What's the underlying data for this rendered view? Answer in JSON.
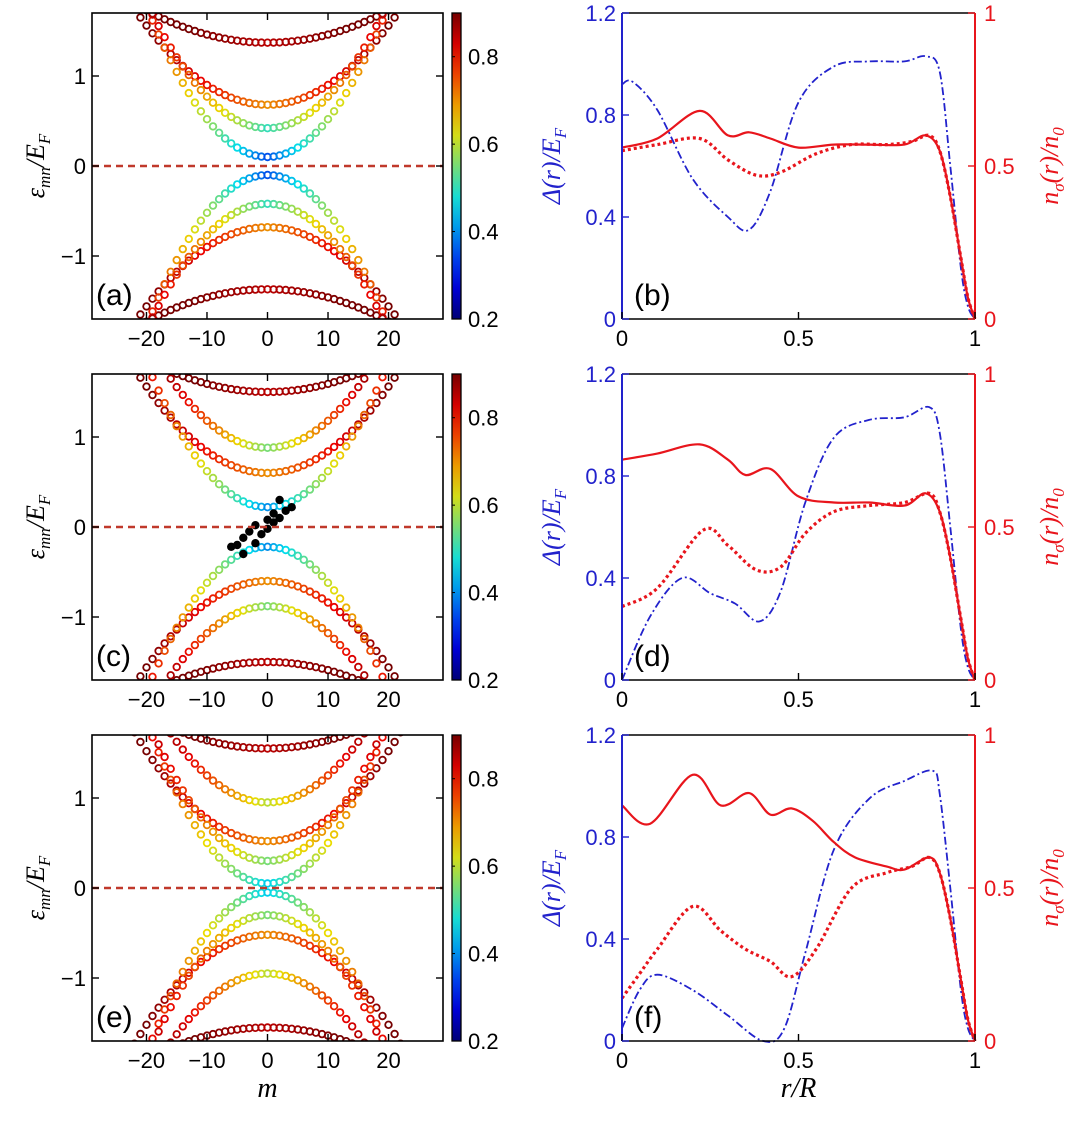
{
  "figure": {
    "colorbar_ticks": [
      "0.8",
      "0.6",
      "0.4",
      "0.2"
    ],
    "colorbar_range": [
      0.2,
      0.9
    ],
    "colors": {
      "delta": "#2222cc",
      "density": "#e8151c",
      "fermi_line": "#c0392b",
      "dot": "#000000"
    }
  },
  "chart_data": [
    {
      "type": "scatter",
      "panel": "(a)",
      "xlabel": "",
      "ylabel": "ε_mn/E_F",
      "xlim": [
        -29,
        29
      ],
      "ylim": [
        -1.7,
        1.7
      ],
      "xticks": [
        "−20",
        "−10",
        "0",
        "10",
        "20"
      ],
      "yticks": [
        "1",
        "0",
        "−1"
      ],
      "reference_line": {
        "y": 0,
        "style": "dashed"
      },
      "bands": [
        {
          "a": 1.37,
          "c": 0.0009,
          "min_w": 0.85,
          "span": 13
        },
        {
          "a": 0.68,
          "c": 0.0022,
          "min_w": 0.7,
          "span": 20
        },
        {
          "a": 0.1,
          "c": 0.0042,
          "min_w": 0.35,
          "span": 24
        },
        {
          "a": 0.42,
          "c": 0.0035,
          "min_w": 0.5,
          "span": 22
        }
      ],
      "special_points": []
    },
    {
      "type": "line",
      "panel": "(b)",
      "xlabel": "",
      "ylabel_left": "Δ(r)/E_F",
      "ylabel_right": "n_σ(r)/n_0",
      "xlim": [
        0,
        1
      ],
      "ylim_left": [
        0,
        1.2
      ],
      "ylim_right": [
        0,
        1
      ],
      "xticks": [
        "0",
        "0.5",
        "1"
      ],
      "yticks_left": [
        "1.2",
        "0.8",
        "0.4",
        "0"
      ],
      "yticks_right": [
        "1",
        "0.5",
        "0"
      ],
      "series": [
        {
          "kind": "delta",
          "x": [
            0,
            0.03,
            0.1,
            0.2,
            0.3,
            0.36,
            0.42,
            0.5,
            0.6,
            0.7,
            0.8,
            0.86,
            0.9,
            0.93,
            0.96,
            0.98,
            1.0
          ],
          "y": [
            0.92,
            0.93,
            0.82,
            0.55,
            0.4,
            0.35,
            0.5,
            0.85,
            0.99,
            1.01,
            1.01,
            1.03,
            0.97,
            0.6,
            0.2,
            0.05,
            0
          ]
        },
        {
          "kind": "n_up",
          "x": [
            0,
            0.1,
            0.22,
            0.3,
            0.36,
            0.42,
            0.5,
            0.6,
            0.7,
            0.8,
            0.86,
            0.9,
            0.93,
            0.96,
            0.98,
            1.0
          ],
          "y": [
            0.56,
            0.59,
            0.68,
            0.6,
            0.61,
            0.59,
            0.56,
            0.57,
            0.57,
            0.57,
            0.6,
            0.55,
            0.4,
            0.2,
            0.07,
            0
          ]
        },
        {
          "kind": "n_down",
          "x": [
            0,
            0.1,
            0.22,
            0.3,
            0.38,
            0.45,
            0.55,
            0.65,
            0.75,
            0.82,
            0.87,
            0.9,
            0.93,
            0.96,
            0.98,
            1.0
          ],
          "y": [
            0.55,
            0.57,
            0.59,
            0.52,
            0.47,
            0.48,
            0.54,
            0.57,
            0.57,
            0.58,
            0.6,
            0.55,
            0.4,
            0.2,
            0.07,
            0
          ]
        }
      ]
    },
    {
      "type": "scatter",
      "panel": "(c)",
      "xlabel": "",
      "ylabel": "ε_mn/E_F",
      "xlim": [
        -29,
        29
      ],
      "ylim": [
        -1.7,
        1.7
      ],
      "xticks": [
        "−20",
        "−10",
        "0",
        "10",
        "20"
      ],
      "yticks": [
        "1",
        "0",
        "−1"
      ],
      "reference_line": {
        "y": 0,
        "style": "dashed"
      },
      "bands": [
        {
          "a": 1.5,
          "c": 0.0009,
          "min_w": 0.85,
          "span": 12
        },
        {
          "a": 0.6,
          "c": 0.0024,
          "min_w": 0.7,
          "span": 20
        },
        {
          "a": 0.22,
          "c": 0.004,
          "min_w": 0.4,
          "span": 24
        },
        {
          "a": 0.88,
          "c": 0.003,
          "min_w": 0.55,
          "span": 18
        }
      ],
      "special_points": [
        {
          "m": -6,
          "e": -0.22
        },
        {
          "m": -5,
          "e": -0.2
        },
        {
          "m": -4,
          "e": -0.3
        },
        {
          "m": -4,
          "e": -0.12
        },
        {
          "m": -3,
          "e": -0.05
        },
        {
          "m": -2,
          "e": -0.18
        },
        {
          "m": -2,
          "e": 0.02
        },
        {
          "m": -1,
          "e": -0.08
        },
        {
          "m": 0,
          "e": 0.08
        },
        {
          "m": 0,
          "e": -0.02
        },
        {
          "m": 1,
          "e": 0.15
        },
        {
          "m": 1,
          "e": 0.05
        },
        {
          "m": 2,
          "e": 0.3
        },
        {
          "m": 2,
          "e": 0.1
        },
        {
          "m": 3,
          "e": 0.18
        },
        {
          "m": 4,
          "e": 0.22
        }
      ]
    },
    {
      "type": "line",
      "panel": "(d)",
      "xlabel": "",
      "ylabel_left": "Δ(r)/E_F",
      "ylabel_right": "n_σ(r)/n_0",
      "xlim": [
        0,
        1
      ],
      "ylim_left": [
        0,
        1.2
      ],
      "ylim_right": [
        0,
        1
      ],
      "xticks": [
        "0",
        "0.5",
        "1"
      ],
      "yticks_left": [
        "1.2",
        "0.8",
        "0.4",
        "0"
      ],
      "yticks_right": [
        "1",
        "0.5",
        "0"
      ],
      "series": [
        {
          "kind": "delta",
          "x": [
            0,
            0.08,
            0.17,
            0.25,
            0.32,
            0.39,
            0.45,
            0.52,
            0.6,
            0.7,
            0.8,
            0.87,
            0.9,
            0.93,
            0.96,
            0.98,
            1.0
          ],
          "y": [
            0,
            0.25,
            0.4,
            0.34,
            0.3,
            0.23,
            0.35,
            0.7,
            0.95,
            1.02,
            1.03,
            1.07,
            0.97,
            0.6,
            0.2,
            0.05,
            0
          ]
        },
        {
          "kind": "n_up",
          "x": [
            0,
            0.1,
            0.22,
            0.3,
            0.35,
            0.42,
            0.5,
            0.6,
            0.7,
            0.8,
            0.86,
            0.9,
            0.93,
            0.96,
            0.98,
            1.0
          ],
          "y": [
            0.72,
            0.74,
            0.77,
            0.72,
            0.67,
            0.69,
            0.6,
            0.58,
            0.58,
            0.57,
            0.61,
            0.55,
            0.4,
            0.2,
            0.07,
            0
          ]
        },
        {
          "kind": "n_down",
          "x": [
            0,
            0.1,
            0.23,
            0.3,
            0.38,
            0.45,
            0.52,
            0.6,
            0.7,
            0.8,
            0.87,
            0.9,
            0.93,
            0.96,
            0.98,
            1.0
          ],
          "y": [
            0.24,
            0.3,
            0.49,
            0.44,
            0.36,
            0.37,
            0.48,
            0.55,
            0.57,
            0.58,
            0.61,
            0.55,
            0.4,
            0.2,
            0.07,
            0
          ]
        }
      ]
    },
    {
      "type": "scatter",
      "panel": "(e)",
      "xlabel": "m",
      "ylabel": "ε_mn/E_F",
      "xlim": [
        -29,
        29
      ],
      "ylim": [
        -1.7,
        1.7
      ],
      "xticks": [
        "−20",
        "−10",
        "0",
        "10",
        "20"
      ],
      "yticks": [
        "1",
        "0",
        "−1"
      ],
      "reference_line": {
        "y": 0,
        "style": "dashed"
      },
      "bands": [
        {
          "a": 1.55,
          "c": 0.0009,
          "min_w": 0.85,
          "span": 12
        },
        {
          "a": 0.52,
          "c": 0.0025,
          "min_w": 0.7,
          "span": 20
        },
        {
          "a": 0.05,
          "c": 0.0045,
          "min_w": 0.45,
          "span": 24
        },
        {
          "a": 0.3,
          "c": 0.004,
          "min_w": 0.55,
          "span": 22
        },
        {
          "a": 0.95,
          "c": 0.003,
          "min_w": 0.6,
          "span": 18
        }
      ],
      "special_points": []
    },
    {
      "type": "line",
      "panel": "(f)",
      "xlabel": "r/R",
      "ylabel_left": "Δ(r)/E_F",
      "ylabel_right": "n_σ(r)/n_0",
      "xlim": [
        0,
        1
      ],
      "ylim_left": [
        0,
        1.2
      ],
      "ylim_right": [
        0,
        1
      ],
      "xticks": [
        "0",
        "0.5",
        "1"
      ],
      "yticks_left": [
        "1.2",
        "0.8",
        "0.4",
        "0"
      ],
      "yticks_right": [
        "1",
        "0.5",
        "0"
      ],
      "series": [
        {
          "kind": "delta",
          "x": [
            0,
            0.05,
            0.1,
            0.2,
            0.3,
            0.4,
            0.46,
            0.52,
            0.6,
            0.7,
            0.8,
            0.88,
            0.9,
            0.93,
            0.96,
            0.98,
            1.0
          ],
          "y": [
            0.05,
            0.2,
            0.26,
            0.2,
            0.1,
            0.0,
            0.05,
            0.35,
            0.75,
            0.95,
            1.02,
            1.06,
            0.97,
            0.6,
            0.2,
            0.05,
            0
          ]
        },
        {
          "kind": "n_up",
          "x": [
            0,
            0.08,
            0.2,
            0.28,
            0.36,
            0.42,
            0.48,
            0.54,
            0.6,
            0.66,
            0.75,
            0.8,
            0.87,
            0.9,
            0.93,
            0.96,
            0.98,
            1.0
          ],
          "y": [
            0.77,
            0.71,
            0.87,
            0.77,
            0.81,
            0.74,
            0.76,
            0.72,
            0.65,
            0.6,
            0.57,
            0.56,
            0.6,
            0.55,
            0.4,
            0.2,
            0.07,
            0
          ]
        },
        {
          "kind": "n_down",
          "x": [
            0,
            0.05,
            0.1,
            0.2,
            0.28,
            0.35,
            0.42,
            0.48,
            0.55,
            0.65,
            0.75,
            0.82,
            0.87,
            0.9,
            0.93,
            0.96,
            0.98,
            1.0
          ],
          "y": [
            0.14,
            0.22,
            0.3,
            0.44,
            0.36,
            0.3,
            0.26,
            0.21,
            0.3,
            0.5,
            0.55,
            0.57,
            0.6,
            0.55,
            0.4,
            0.2,
            0.07,
            0
          ]
        }
      ]
    }
  ]
}
